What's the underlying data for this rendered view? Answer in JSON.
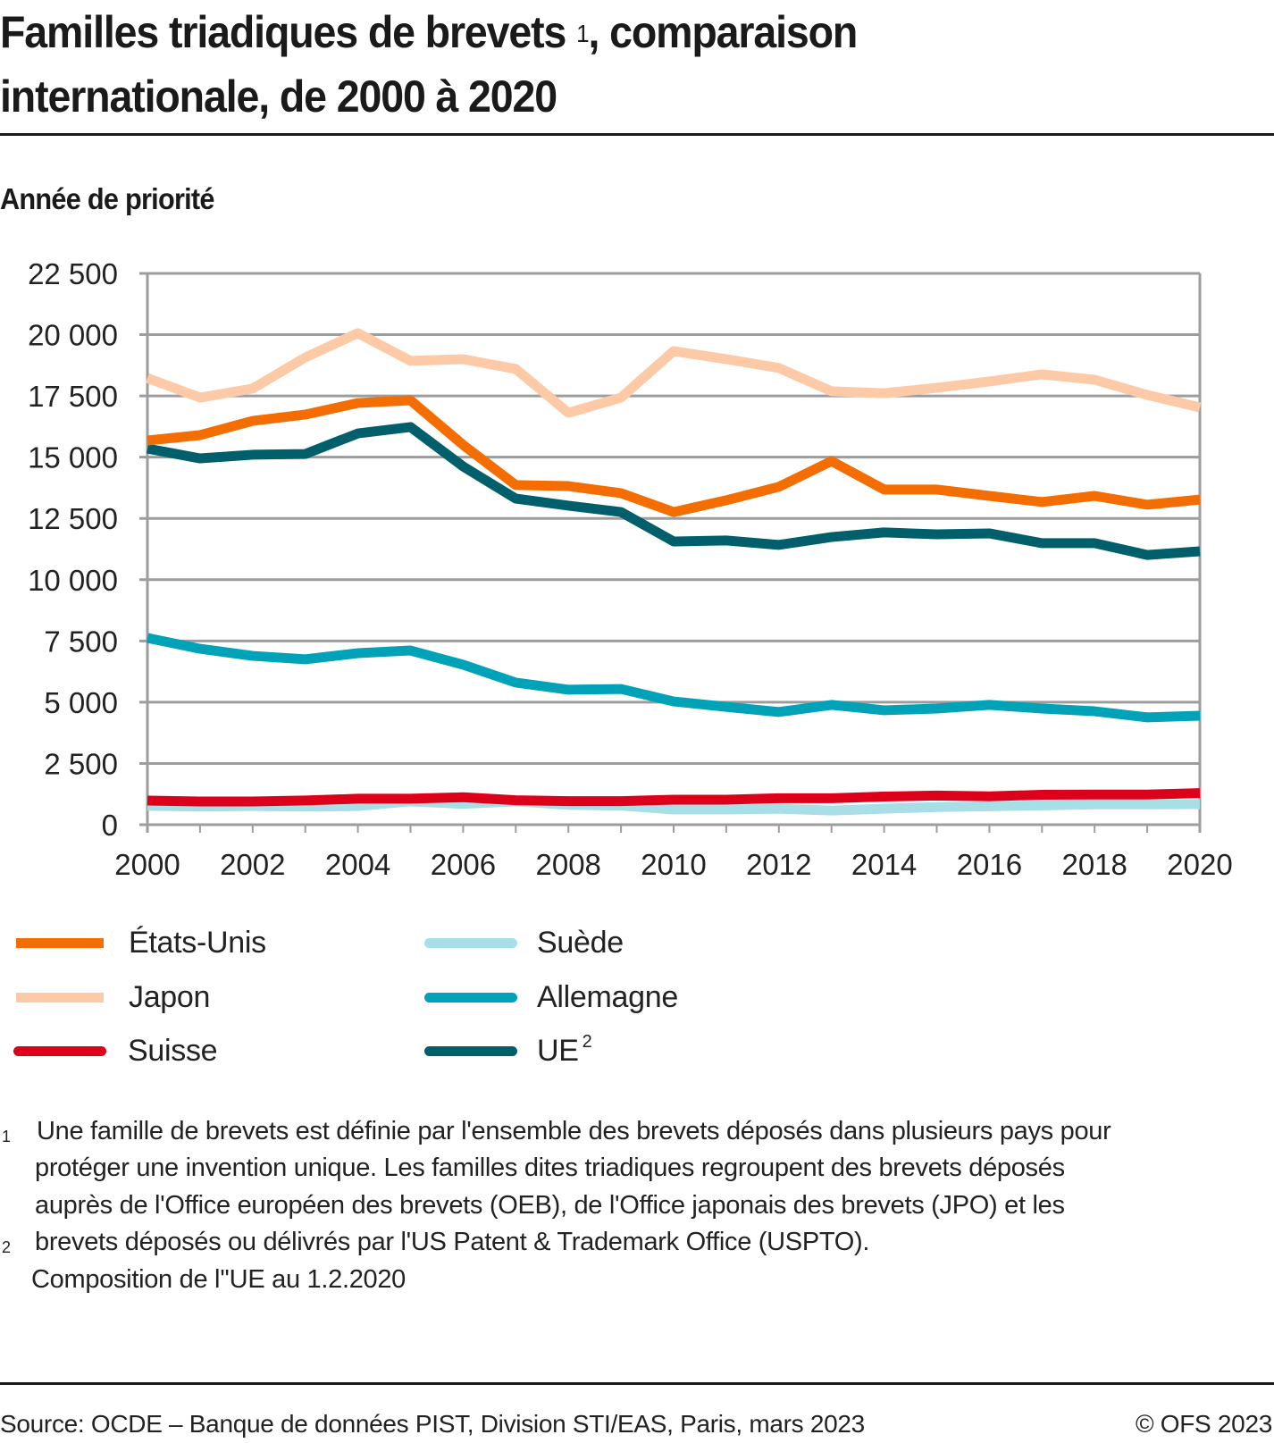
{
  "header": {
    "title_part1": "Familles triadiques de brevets",
    "title_sup": "1",
    "title_part2": ", comparaison",
    "title_line2": "internationale, de 2000 à 2020",
    "subtitle": "Année de priorité"
  },
  "chart_data": {
    "type": "line",
    "title": "Familles triadiques de brevets, comparaison internationale, de 2000 à 2020",
    "subtitle": "Année de priorité",
    "xlabel": "",
    "ylabel": "",
    "x": [
      2000,
      2001,
      2002,
      2003,
      2004,
      2005,
      2006,
      2007,
      2008,
      2009,
      2010,
      2011,
      2012,
      2013,
      2014,
      2015,
      2016,
      2017,
      2018,
      2019,
      2020
    ],
    "x_tick_labels": [
      "2000",
      "2002",
      "2004",
      "2006",
      "2008",
      "2010",
      "2012",
      "2014",
      "2016",
      "2018",
      "2020"
    ],
    "x_ticks": [
      2000,
      2002,
      2004,
      2006,
      2008,
      2010,
      2012,
      2014,
      2016,
      2018,
      2020
    ],
    "y_tick_labels": [
      "0",
      "2 500",
      "5 000",
      "7 500",
      "10 000",
      "12 500",
      "15 000",
      "17 500",
      "20 000",
      "22 500"
    ],
    "y_ticks": [
      0,
      2500,
      5000,
      7500,
      10000,
      12500,
      15000,
      17500,
      20000,
      22500
    ],
    "ylim": [
      0,
      22500
    ],
    "xlim": [
      2000,
      2020
    ],
    "grid": "horizontal",
    "legend_position": "bottom",
    "series": [
      {
        "name": "États-Unis",
        "color": "#f46d00",
        "values": [
          15680,
          15900,
          16480,
          16740,
          17210,
          17320,
          15500,
          13860,
          13820,
          13530,
          12760,
          13240,
          13790,
          14840,
          13680,
          13680,
          13420,
          13170,
          13420,
          13060,
          13270
        ]
      },
      {
        "name": "Japon",
        "color": "#fccaa6",
        "values": [
          18230,
          17430,
          17800,
          19070,
          20060,
          18930,
          19000,
          18600,
          16810,
          17430,
          19330,
          19000,
          18640,
          17690,
          17610,
          17830,
          18090,
          18380,
          18160,
          17540,
          17030
        ]
      },
      {
        "name": "Suisse",
        "color": "#dc001b",
        "values": [
          985,
          950,
          950,
          990,
          1060,
          1060,
          1120,
          1000,
          960,
          960,
          1020,
          1020,
          1080,
          1080,
          1150,
          1190,
          1160,
          1220,
          1230,
          1230,
          1290
        ]
      },
      {
        "name": "Suède",
        "color": "#a8dee6",
        "values": [
          770,
          740,
          760,
          740,
          760,
          950,
          850,
          950,
          810,
          780,
          620,
          620,
          650,
          580,
          650,
          720,
          750,
          790,
          830,
          830,
          840
        ]
      },
      {
        "name": "Allemagne",
        "color": "#00a2b8",
        "values": [
          7620,
          7180,
          6890,
          6750,
          7000,
          7110,
          6530,
          5800,
          5510,
          5540,
          5030,
          4810,
          4600,
          4890,
          4670,
          4740,
          4890,
          4740,
          4630,
          4380,
          4450
        ]
      },
      {
        "name": "UE",
        "name_sup": "2",
        "color": "#005f6b",
        "values": [
          15350,
          14950,
          15100,
          15130,
          15970,
          16230,
          14620,
          13310,
          13020,
          12760,
          11560,
          11600,
          11420,
          11740,
          11930,
          11850,
          11890,
          11490,
          11490,
          11010,
          11160
        ]
      }
    ]
  },
  "legend": {
    "items": [
      {
        "label": "États-Unis",
        "color": "#f46d00"
      },
      {
        "label": "Japon",
        "color": "#fccaa6"
      },
      {
        "label": "Suisse",
        "color": "#dc001b"
      },
      {
        "label": "Suède",
        "color": "#a8dee6"
      },
      {
        "label": "Allemagne",
        "color": "#00a2b8"
      },
      {
        "label": "UE",
        "sup": "2",
        "color": "#005f6b"
      }
    ]
  },
  "notes": {
    "mark1": "1",
    "mark2": "2",
    "line1": "Une famille de brevets est définie par l'ensemble des brevets déposés dans plusieurs pays pour",
    "line2": "protéger une invention unique. Les familles dites triadiques regroupent des brevets déposés",
    "line3": "auprès de l'Office européen des brevets (OEB), de l'Office japonais des brevets (JPO) et les",
    "line4": "brevets déposés ou délivrés par l'US Patent & Trademark Office (USPTO).",
    "line5": "Composition de l''UE au 1.2.2020"
  },
  "footer": {
    "source": "Source: OCDE – Banque de données PIST, Division STI/EAS, Paris, mars 2023",
    "copyright": "© OFS 2023"
  },
  "colors": {
    "grid": "#9d9d9d",
    "text": "#1a1a1a"
  }
}
